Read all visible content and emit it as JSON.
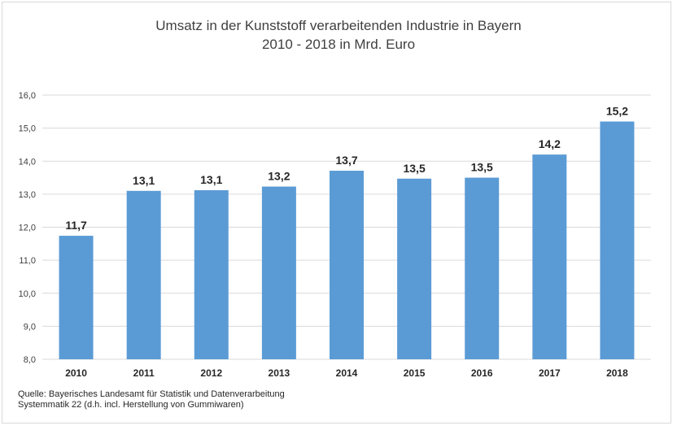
{
  "chart_data": {
    "type": "bar",
    "title_line1": "Umsatz in der Kunststoff verarbeitenden Industrie in Bayern",
    "title_line2": "2010 - 2018 in Mrd. Euro",
    "categories": [
      "2010",
      "2011",
      "2012",
      "2013",
      "2014",
      "2015",
      "2016",
      "2017",
      "2018"
    ],
    "values": [
      11.74,
      13.1,
      13.12,
      13.23,
      13.71,
      13.47,
      13.5,
      14.2,
      15.2
    ],
    "data_labels": [
      "11,7",
      "13,1",
      "13,1",
      "13,2",
      "13,7",
      "13,5",
      "13,5",
      "14,2",
      "15,2"
    ],
    "ylim": [
      8,
      16
    ],
    "yticks": [
      "8,0",
      "9,0",
      "10,0",
      "11,0",
      "12,0",
      "13,0",
      "14,0",
      "15,0",
      "16,0"
    ],
    "grid": true,
    "bar_color": "#5b9bd5",
    "grid_color": "#d9d9d9"
  },
  "source": {
    "line1": "Quelle:  Bayerisches Landesamt für Statistik und Datenverarbeitung",
    "line2": "Systemmatik 22 (d.h. incl. Herstellung von Gummiwaren)"
  }
}
